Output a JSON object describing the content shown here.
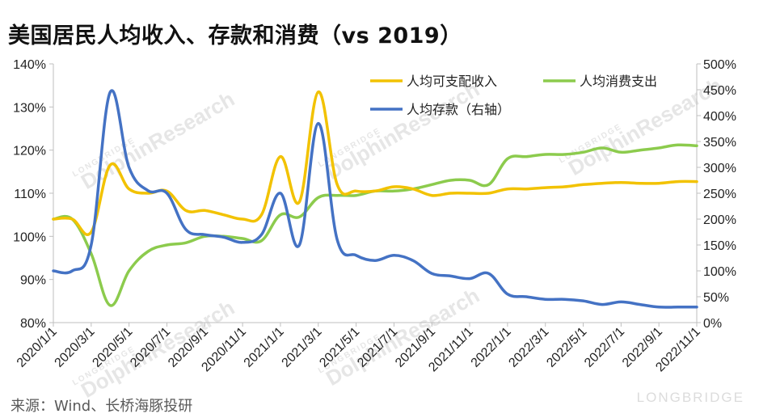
{
  "title": "美国居民人均收入、存款和消费（vs 2019）",
  "source": "来源：Wind、长桥海豚投研",
  "watermark": {
    "brand": "LONGBRIDGE",
    "name": "DolphinResearch"
  },
  "colors": {
    "income": "#F2C200",
    "consumption": "#8CCB4D",
    "savings": "#4472C4",
    "axis": "#bfbfbf",
    "grid": "#d9d9d9"
  },
  "chart_data": {
    "type": "line",
    "title": "美国居民人均收入、存款和消费（vs 2019）",
    "x": [
      "2020/1/1",
      "2020/2/1",
      "2020/3/1",
      "2020/4/1",
      "2020/5/1",
      "2020/6/1",
      "2020/7/1",
      "2020/8/1",
      "2020/9/1",
      "2020/10/1",
      "2020/11/1",
      "2020/12/1",
      "2021/1/1",
      "2021/2/1",
      "2021/3/1",
      "2021/4/1",
      "2021/5/1",
      "2021/6/1",
      "2021/7/1",
      "2021/8/1",
      "2021/9/1",
      "2021/10/1",
      "2021/11/1",
      "2021/12/1",
      "2022/1/1",
      "2022/2/1",
      "2022/3/1",
      "2022/4/1",
      "2022/5/1",
      "2022/6/1",
      "2022/7/1",
      "2022/8/1",
      "2022/9/1",
      "2022/10/1",
      "2022/11/1"
    ],
    "x_tick_labels": [
      "2020/1/1",
      "2020/3/1",
      "2020/5/1",
      "2020/7/1",
      "2020/9/1",
      "2020/11/1",
      "2021/1/1",
      "2021/3/1",
      "2021/5/1",
      "2021/7/1",
      "2021/9/1",
      "2021/11/1",
      "2022/1/1",
      "2022/3/1",
      "2022/5/1",
      "2022/7/1",
      "2022/9/1",
      "2022/11/1"
    ],
    "y_left": {
      "ticks": [
        "80%",
        "90%",
        "100%",
        "110%",
        "120%",
        "130%",
        "140%"
      ],
      "range": [
        80,
        140
      ]
    },
    "y_right": {
      "ticks": [
        "0%",
        "50%",
        "100%",
        "150%",
        "200%",
        "250%",
        "300%",
        "350%",
        "400%",
        "450%",
        "500%"
      ],
      "range": [
        0,
        500
      ]
    },
    "grid": false,
    "legend_position": "top-right",
    "series": [
      {
        "name": "人均可支配收入",
        "axis": "left",
        "values": [
          104,
          104,
          101,
          116.5,
          111,
          110,
          110.5,
          106,
          106,
          105,
          104,
          105,
          118.5,
          108,
          133.5,
          112,
          110.5,
          110.5,
          111.5,
          111,
          109.5,
          110,
          110,
          110,
          111,
          111,
          111.3,
          111.5,
          112,
          112.3,
          112.5,
          112.3,
          112.3,
          112.7,
          112.7
        ]
      },
      {
        "name": "人均消费支出",
        "axis": "left",
        "values": [
          104,
          104,
          96,
          84,
          92,
          96.5,
          98,
          98.5,
          100,
          100,
          99.5,
          99,
          105,
          104.5,
          109,
          109.5,
          109.5,
          110.5,
          110.5,
          111,
          112,
          113,
          113,
          112,
          118,
          118.5,
          119,
          119,
          119.5,
          120.5,
          119.5,
          120,
          120.5,
          121.2,
          121
        ]
      },
      {
        "name": "人均存款（右轴）",
        "axis": "right",
        "values": [
          100,
          100,
          150,
          445,
          300,
          255,
          250,
          180,
          170,
          165,
          155,
          170,
          250,
          150,
          385,
          160,
          130,
          120,
          130,
          120,
          95,
          90,
          85,
          95,
          55,
          50,
          45,
          45,
          42,
          35,
          40,
          35,
          30,
          30,
          30
        ]
      }
    ]
  }
}
